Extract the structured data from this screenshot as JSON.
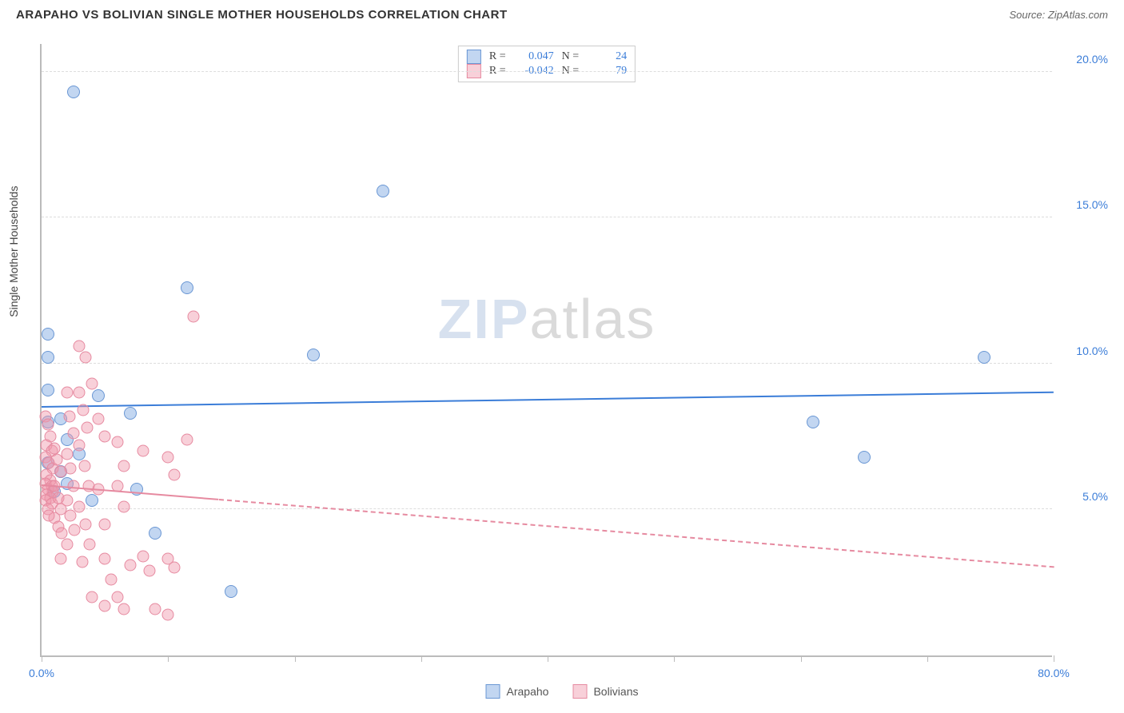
{
  "header": {
    "title": "ARAPAHO VS BOLIVIAN SINGLE MOTHER HOUSEHOLDS CORRELATION CHART",
    "source": "Source: ZipAtlas.com"
  },
  "watermark": {
    "part1": "ZIP",
    "part2": "atlas"
  },
  "chart": {
    "type": "scatter",
    "y_axis_title": "Single Mother Households",
    "xlim": [
      0,
      80
    ],
    "ylim": [
      0,
      21
    ],
    "x_ticks": [
      0,
      10,
      20,
      30,
      40,
      50,
      60,
      70,
      80
    ],
    "x_tick_labels": {
      "0": "0.0%",
      "80": "80.0%"
    },
    "y_ticks": [
      5,
      10,
      15,
      20
    ],
    "y_tick_labels": {
      "5": "5.0%",
      "10": "10.0%",
      "15": "15.0%",
      "20": "20.0%"
    },
    "background_color": "#ffffff",
    "grid_color": "#dddddd",
    "axis_tick_color": "#3b7dd8",
    "series": [
      {
        "name": "Arapaho",
        "fill": "rgba(120,165,225,0.45)",
        "stroke": "#6a97d4",
        "marker_size": 16,
        "R": "0.047",
        "N": "24",
        "trend": {
          "x1": 0,
          "y1": 8.5,
          "x2": 80,
          "y2": 9.0,
          "color": "#3b7dd8",
          "width": 2,
          "dashed_after_x": null
        },
        "points": [
          [
            2.5,
            19.3
          ],
          [
            27.0,
            15.9
          ],
          [
            0.5,
            11.0
          ],
          [
            0.5,
            10.2
          ],
          [
            11.5,
            12.6
          ],
          [
            21.5,
            10.3
          ],
          [
            0.5,
            9.1
          ],
          [
            1.5,
            8.1
          ],
          [
            4.5,
            8.9
          ],
          [
            7.0,
            8.3
          ],
          [
            2.0,
            7.4
          ],
          [
            7.5,
            5.7
          ],
          [
            9.0,
            4.2
          ],
          [
            15.0,
            2.2
          ],
          [
            65.0,
            6.8
          ],
          [
            61.0,
            8.0
          ],
          [
            74.5,
            10.2
          ],
          [
            0.5,
            8.0
          ],
          [
            1.5,
            6.3
          ],
          [
            4.0,
            5.3
          ],
          [
            2.0,
            5.9
          ],
          [
            0.5,
            6.6
          ],
          [
            1.0,
            5.6
          ],
          [
            3.0,
            6.9
          ]
        ]
      },
      {
        "name": "Bolivians",
        "fill": "rgba(240,150,170,0.45)",
        "stroke": "#e68aa0",
        "marker_size": 15,
        "R": "-0.042",
        "N": "79",
        "trend": {
          "x1": 0,
          "y1": 5.8,
          "x2": 80,
          "y2": 3.0,
          "color": "#e68aa0",
          "width": 2,
          "dashed_after_x": 14
        },
        "points": [
          [
            0.3,
            8.2
          ],
          [
            0.5,
            7.9
          ],
          [
            0.7,
            7.5
          ],
          [
            0.4,
            7.2
          ],
          [
            0.8,
            7.0
          ],
          [
            0.3,
            6.8
          ],
          [
            0.6,
            6.6
          ],
          [
            0.9,
            6.4
          ],
          [
            0.4,
            6.2
          ],
          [
            0.7,
            6.0
          ],
          [
            0.3,
            5.9
          ],
          [
            0.8,
            5.8
          ],
          [
            0.5,
            5.7
          ],
          [
            0.9,
            5.6
          ],
          [
            0.4,
            5.5
          ],
          [
            0.7,
            5.4
          ],
          [
            0.3,
            5.3
          ],
          [
            0.8,
            5.2
          ],
          [
            0.5,
            5.0
          ],
          [
            1.0,
            7.1
          ],
          [
            1.2,
            6.7
          ],
          [
            1.5,
            6.3
          ],
          [
            1.0,
            5.8
          ],
          [
            1.3,
            5.4
          ],
          [
            1.5,
            5.0
          ],
          [
            1.0,
            4.7
          ],
          [
            1.3,
            4.4
          ],
          [
            1.6,
            4.2
          ],
          [
            2.0,
            9.0
          ],
          [
            2.2,
            8.2
          ],
          [
            2.5,
            7.6
          ],
          [
            2.0,
            6.9
          ],
          [
            2.3,
            6.4
          ],
          [
            2.5,
            5.8
          ],
          [
            2.0,
            5.3
          ],
          [
            2.3,
            4.8
          ],
          [
            2.6,
            4.3
          ],
          [
            3.0,
            10.6
          ],
          [
            3.5,
            10.2
          ],
          [
            3.0,
            9.0
          ],
          [
            3.3,
            8.4
          ],
          [
            3.6,
            7.8
          ],
          [
            3.0,
            7.2
          ],
          [
            3.4,
            6.5
          ],
          [
            3.7,
            5.8
          ],
          [
            3.0,
            5.1
          ],
          [
            3.5,
            4.5
          ],
          [
            3.8,
            3.8
          ],
          [
            3.2,
            3.2
          ],
          [
            4.0,
            2.0
          ],
          [
            4.0,
            9.3
          ],
          [
            4.5,
            8.1
          ],
          [
            5.0,
            7.5
          ],
          [
            5.0,
            3.3
          ],
          [
            5.5,
            2.6
          ],
          [
            5.0,
            1.7
          ],
          [
            6.0,
            7.3
          ],
          [
            6.5,
            6.5
          ],
          [
            6.0,
            5.8
          ],
          [
            6.5,
            5.1
          ],
          [
            6.0,
            2.0
          ],
          [
            6.5,
            1.6
          ],
          [
            7.0,
            3.1
          ],
          [
            8.0,
            7.0
          ],
          [
            8.0,
            3.4
          ],
          [
            8.5,
            2.9
          ],
          [
            9.0,
            1.6
          ],
          [
            10.0,
            6.8
          ],
          [
            10.5,
            6.2
          ],
          [
            10.0,
            3.3
          ],
          [
            10.5,
            3.0
          ],
          [
            10.0,
            1.4
          ],
          [
            11.5,
            7.4
          ],
          [
            12.0,
            11.6
          ],
          [
            5.0,
            4.5
          ],
          [
            4.5,
            5.7
          ],
          [
            2.0,
            3.8
          ],
          [
            1.5,
            3.3
          ],
          [
            0.6,
            4.8
          ]
        ]
      }
    ],
    "legend": {
      "stats_labels": {
        "R": "R =",
        "N": "N ="
      },
      "bottom_items": [
        "Arapaho",
        "Bolivians"
      ]
    }
  }
}
